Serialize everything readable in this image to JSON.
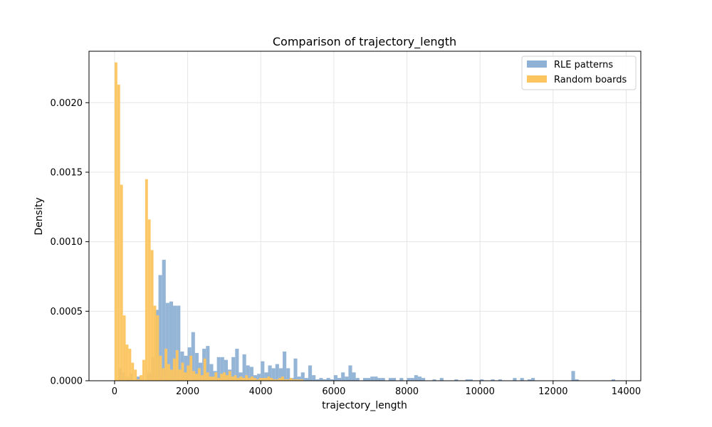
{
  "chart_data": {
    "type": "histogram",
    "title": "Comparison of trajectory_length",
    "xlabel": "trajectory_length",
    "ylabel": "Density",
    "xlim": [
      -700,
      14400
    ],
    "ylim": [
      0,
      0.00237
    ],
    "xticks": [
      0,
      2000,
      4000,
      6000,
      8000,
      10000,
      12000,
      14000
    ],
    "xtick_labels": [
      "0",
      "2000",
      "4000",
      "6000",
      "8000",
      "10000",
      "12000",
      "14000"
    ],
    "yticks": [
      0,
      0.0005,
      0.001,
      0.0015,
      0.002
    ],
    "ytick_labels": [
      "0.0000",
      "0.0005",
      "0.0010",
      "0.0015",
      "0.0020"
    ],
    "grid": true,
    "legend_position": "top-right",
    "series": [
      {
        "name": "RLE patterns",
        "color": "#8fb1d5",
        "bin_width": 100,
        "bins": [
          [
            100,
            9e-05
          ],
          [
            200,
            6e-05
          ],
          [
            300,
            3e-05
          ],
          [
            400,
            5e-05
          ],
          [
            600,
            3e-05
          ],
          [
            700,
            1e-05
          ],
          [
            900,
            6e-05
          ],
          [
            1000,
            0.00017
          ],
          [
            1100,
            0.00051
          ],
          [
            1200,
            0.00076
          ],
          [
            1300,
            0.00087
          ],
          [
            1400,
            0.00056
          ],
          [
            1500,
            0.00057
          ],
          [
            1600,
            0.00054
          ],
          [
            1700,
            0.00054
          ],
          [
            1800,
            0.00021
          ],
          [
            1900,
            0.00018
          ],
          [
            2000,
            0.00024
          ],
          [
            2100,
            0.00035
          ],
          [
            2200,
            0.0002
          ],
          [
            2300,
            0.00013
          ],
          [
            2400,
            0.00023
          ],
          [
            2500,
            0.00025
          ],
          [
            2600,
            0.00012
          ],
          [
            2700,
            7e-05
          ],
          [
            2800,
            0.00017
          ],
          [
            2900,
            0.00017
          ],
          [
            3000,
            0.00015
          ],
          [
            3100,
            8e-05
          ],
          [
            3200,
            0.00017
          ],
          [
            3300,
            0.00023
          ],
          [
            3400,
            6e-05
          ],
          [
            3500,
            0.00019
          ],
          [
            3600,
            0.00011
          ],
          [
            3700,
            0.0001
          ],
          [
            3800,
            4e-05
          ],
          [
            3900,
            5e-05
          ],
          [
            4000,
            0.00014
          ],
          [
            4100,
            6e-05
          ],
          [
            4200,
            0.00011
          ],
          [
            4300,
            9e-05
          ],
          [
            4400,
            0.00012
          ],
          [
            4500,
            9e-05
          ],
          [
            4600,
            0.00021
          ],
          [
            4700,
            9e-05
          ],
          [
            4800,
            2e-05
          ],
          [
            4900,
            0.00016
          ],
          [
            5000,
            3e-05
          ],
          [
            5100,
            6e-05
          ],
          [
            5200,
            2e-05
          ],
          [
            5300,
            0.00011
          ],
          [
            5400,
            4e-05
          ],
          [
            5500,
            1e-05
          ],
          [
            5600,
            2e-05
          ],
          [
            5700,
            1e-05
          ],
          [
            5800,
            2e-05
          ],
          [
            5900,
            1e-05
          ],
          [
            6000,
            4e-05
          ],
          [
            6100,
            2e-05
          ],
          [
            6200,
            6e-05
          ],
          [
            6300,
            3e-05
          ],
          [
            6400,
            0.00011
          ],
          [
            6500,
            6e-05
          ],
          [
            6600,
            2e-05
          ],
          [
            6800,
            2e-05
          ],
          [
            6900,
            2e-05
          ],
          [
            7000,
            3e-05
          ],
          [
            7100,
            3e-05
          ],
          [
            7200,
            2e-05
          ],
          [
            7300,
            2e-05
          ],
          [
            7500,
            2e-05
          ],
          [
            7600,
            2e-05
          ],
          [
            7800,
            2e-05
          ],
          [
            8000,
            2e-05
          ],
          [
            8100,
            2e-05
          ],
          [
            8200,
            4e-05
          ],
          [
            8300,
            3e-05
          ],
          [
            8400,
            2e-05
          ],
          [
            8700,
            1e-05
          ],
          [
            8900,
            2e-05
          ],
          [
            9300,
            1e-05
          ],
          [
            9600,
            1e-05
          ],
          [
            9700,
            1e-05
          ],
          [
            10000,
            1e-05
          ],
          [
            10300,
            1e-05
          ],
          [
            10500,
            1e-05
          ],
          [
            10900,
            2e-05
          ],
          [
            11100,
            2e-05
          ],
          [
            11300,
            1e-05
          ],
          [
            11400,
            2e-05
          ],
          [
            12500,
            7e-05
          ],
          [
            12600,
            1e-05
          ],
          [
            13600,
            1e-05
          ]
        ]
      },
      {
        "name": "Random boards",
        "color": "#fcc55f",
        "bin_width": 76,
        "bins": [
          [
            0,
            0.00229
          ],
          [
            76,
            0.00213
          ],
          [
            152,
            0.00141
          ],
          [
            228,
            0.00047
          ],
          [
            304,
            0.00026
          ],
          [
            380,
            0.00023
          ],
          [
            456,
            0.00013
          ],
          [
            532,
            8e-05
          ],
          [
            608,
            1e-05
          ],
          [
            684,
            4e-05
          ],
          [
            760,
            0.00015
          ],
          [
            836,
            0.00145
          ],
          [
            912,
            0.00116
          ],
          [
            988,
            0.00094
          ],
          [
            1064,
            0.00054
          ],
          [
            1140,
            0.00047
          ],
          [
            1216,
            0.00018
          ],
          [
            1292,
            9e-05
          ],
          [
            1368,
            0.00023
          ],
          [
            1444,
            0.00012
          ],
          [
            1520,
            8e-05
          ],
          [
            1596,
            0.00016
          ],
          [
            1672,
            0.00022
          ],
          [
            1748,
            8e-05
          ],
          [
            1824,
            0.00013
          ],
          [
            1900,
            6e-05
          ],
          [
            1976,
            0.00011
          ],
          [
            2052,
            0.00018
          ],
          [
            2128,
            7e-05
          ],
          [
            2204,
            5e-05
          ],
          [
            2280,
            9e-05
          ],
          [
            2356,
            4e-05
          ],
          [
            2432,
            0.00016
          ],
          [
            2508,
            6e-05
          ],
          [
            2584,
            3e-05
          ],
          [
            2660,
            3e-05
          ],
          [
            2736,
            6e-05
          ],
          [
            2812,
            2e-05
          ],
          [
            2888,
            5e-05
          ],
          [
            2964,
            6e-05
          ],
          [
            3040,
            4e-05
          ],
          [
            3116,
            7e-05
          ],
          [
            3192,
            3e-05
          ],
          [
            3268,
            4e-05
          ],
          [
            3344,
            2e-05
          ],
          [
            3420,
            3e-05
          ],
          [
            3496,
            2e-05
          ],
          [
            3572,
            4e-05
          ],
          [
            3648,
            2e-05
          ],
          [
            3724,
            3e-05
          ],
          [
            3800,
            2e-05
          ],
          [
            3876,
            1e-05
          ],
          [
            3952,
            2e-05
          ],
          [
            4028,
            2e-05
          ],
          [
            4104,
            2e-05
          ],
          [
            4180,
            3e-05
          ],
          [
            4256,
            2e-05
          ],
          [
            4332,
            1e-05
          ],
          [
            4408,
            1e-05
          ],
          [
            4484,
            2e-05
          ],
          [
            4560,
            3e-05
          ],
          [
            4636,
            1e-05
          ],
          [
            4712,
            1e-05
          ],
          [
            4788,
            2e-05
          ],
          [
            4864,
            1e-05
          ],
          [
            4940,
            1e-05
          ],
          [
            5016,
            1e-05
          ],
          [
            5092,
            1e-05
          ]
        ]
      }
    ]
  }
}
